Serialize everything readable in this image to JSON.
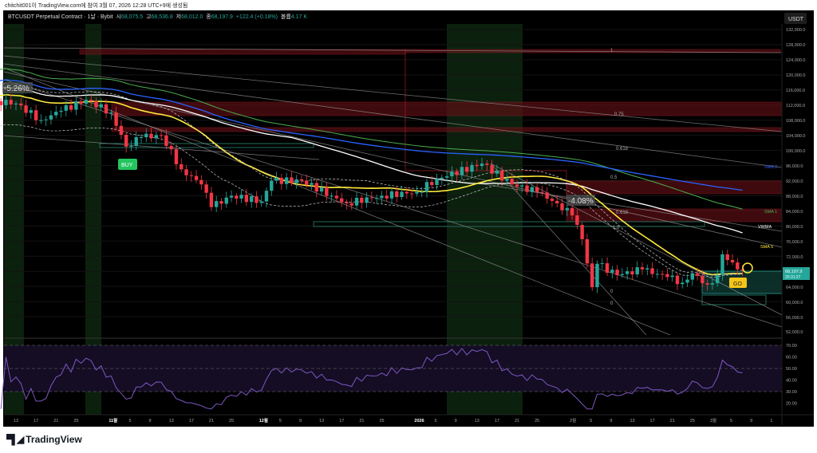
{
  "credit": "chitchit001이 TradingView.com에 참여 3월 07, 2026 12:28 UTC+9에 생성됨",
  "legend": {
    "symbol": "BTCUSDT Perpetual Contract · 1날 · Bybit",
    "o_label": "시",
    "o": "68,075.5",
    "h_label": "고",
    "h": "68,536.8",
    "l_label": "저",
    "l": "68,012.0",
    "c_label": "종",
    "c": "68,197.9",
    "change": "+122.4 (+0.18%)",
    "vol_label": "볼륨",
    "vol": "4.17 K"
  },
  "currency": "USDT",
  "price_label": {
    "price": "68,197.9",
    "countdown": "20:31:27"
  },
  "logo": "TradingView",
  "colors": {
    "up": "#26a69a",
    "down": "#f23645",
    "sma1": "#4caf50",
    "sma2": "#2962ff",
    "vwma": "#ffffff",
    "sma5": "#ffeb3b",
    "rsi": "#7e57c2"
  },
  "chart_data": {
    "type": "candlestick",
    "title": "BTCUSDT Perpetual Contract 1D Bybit",
    "yticks": [
      "132,000.0",
      "128,000.0",
      "124,000.0",
      "120,000.0",
      "116,000.0",
      "112,000.0",
      "108,000.0",
      "104,000.0",
      "100,000.0",
      "96,000.0",
      "92,000.0",
      "88,000.0",
      "84,000.0",
      "80,000.0",
      "76,000.0",
      "72,000.0",
      "64,000.0",
      "60,000.0",
      "56,000.0",
      "52,000.0"
    ],
    "ylim": [
      52000,
      132000
    ],
    "xticks": [
      "13",
      "17",
      "21",
      "25",
      "11월",
      "5",
      "9",
      "13",
      "17",
      "21",
      "25",
      "12월",
      "5",
      "9",
      "13",
      "17",
      "21",
      "25",
      "2026",
      "5",
      "9",
      "13",
      "17",
      "21",
      "25",
      "2월",
      "5",
      "9",
      "13",
      "17",
      "21",
      "25",
      "3월",
      "5",
      "9",
      "1"
    ],
    "close_keypoints_day_price": [
      [
        -4,
        113000
      ],
      [
        0,
        112400
      ],
      [
        5,
        108000
      ],
      [
        9,
        110500
      ],
      [
        14,
        113400
      ],
      [
        19,
        110000
      ],
      [
        22,
        101000
      ],
      [
        25,
        103500
      ],
      [
        29,
        104000
      ],
      [
        33,
        95000
      ],
      [
        37,
        91000
      ],
      [
        39,
        85000
      ],
      [
        43,
        88000
      ],
      [
        49,
        86500
      ],
      [
        51,
        92000
      ],
      [
        57,
        92000
      ],
      [
        63,
        88000
      ],
      [
        66,
        86000
      ],
      [
        73,
        88000
      ],
      [
        80,
        89000
      ],
      [
        84,
        92500
      ],
      [
        93,
        96500
      ],
      [
        99,
        91000
      ],
      [
        104,
        89000
      ],
      [
        108,
        86000
      ],
      [
        111,
        82800
      ],
      [
        113,
        76500
      ],
      [
        115,
        63800
      ],
      [
        116,
        70000
      ],
      [
        120,
        67000
      ],
      [
        125,
        68500
      ],
      [
        130,
        66500
      ],
      [
        133,
        65000
      ],
      [
        135,
        67500
      ],
      [
        138,
        64500
      ],
      [
        140,
        67000
      ],
      [
        141,
        72500
      ],
      [
        142,
        71000
      ],
      [
        145,
        68200
      ]
    ],
    "indicator_labels": [
      "SMA 2",
      "SMA 1",
      "VWMA",
      "SMA 5"
    ],
    "fib_levels": [
      "1",
      "0.75",
      "0.618",
      "0.5",
      "0.618",
      "1.0",
      "0",
      "0"
    ],
    "annotations": {
      "buy": "BUY",
      "go": "GO",
      "pct1": "-5.26%",
      "pct2": "-4.08%"
    },
    "rsi": {
      "yticks": [
        "70.00",
        "60.00",
        "50.00",
        "40.00",
        "30.00",
        "20.00"
      ],
      "ylim": [
        15,
        75
      ],
      "bands": [
        70,
        50,
        30
      ]
    }
  }
}
